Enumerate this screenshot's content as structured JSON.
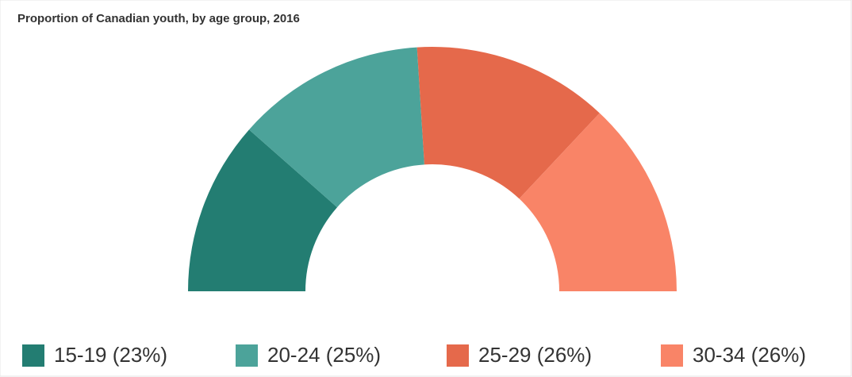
{
  "chart_data": {
    "type": "semi-donut",
    "title": "Proportion of Canadian youth, by age group, 2016",
    "categories": [
      "15-19 (23%)",
      "20-24 (25%)",
      "25-29 (26%)",
      "30-34 (26%)"
    ],
    "values": [
      23,
      25,
      26,
      26
    ],
    "colors": [
      "#237d72",
      "#4ca39a",
      "#e5694b",
      "#f98467"
    ]
  }
}
